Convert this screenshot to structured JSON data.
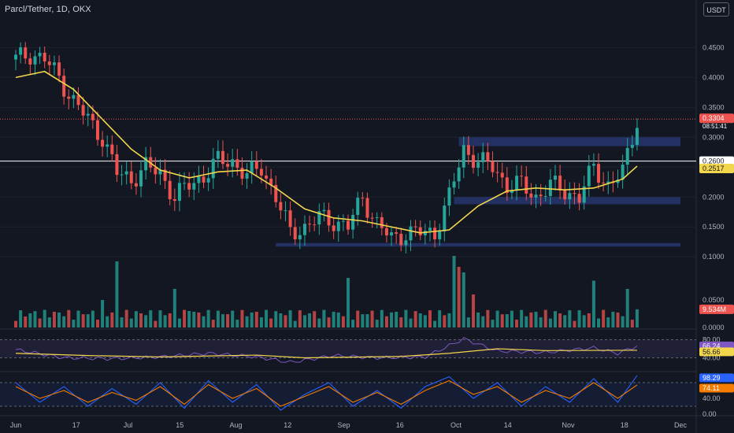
{
  "header": {
    "pair": "Parcl/Tether",
    "timeframe": "1D",
    "exchange": "OKX"
  },
  "currency_button": "USDT",
  "price_label": {
    "value": "0.3304",
    "countdown": "08:51:41"
  },
  "level_label": "0.2600",
  "ma_label": "0.2517",
  "volume_label": "9.534M",
  "rsi_labels": {
    "rsi": "66.24",
    "ma": "56.66"
  },
  "stoch_labels": {
    "k": "98.29",
    "d": "74.11"
  },
  "colors": {
    "background": "#131722",
    "up": "#26a69a",
    "down": "#ef5350",
    "ma": "#f2d64b",
    "zone": "#2a3b78",
    "rsi_line": "#7e57c2",
    "stoch_k": "#2962ff",
    "stoch_d": "#f57c00",
    "text": "#d1d4dc",
    "axis_text": "#b2b5be"
  },
  "chart_data": {
    "type": "candlestick",
    "x_ticks": [
      "Jun",
      "17",
      "Jul",
      "15",
      "Aug",
      "12",
      "Sep",
      "16",
      "Oct",
      "14",
      "Nov",
      "18",
      "Dec"
    ],
    "price_axis": {
      "ticks": [
        "0.4500",
        "0.4000",
        "0.3500",
        "0.3000",
        "0.2500",
        "0.2000",
        "0.1500",
        "0.1000"
      ],
      "range": [
        0.095,
        0.49
      ]
    },
    "price_close_samples": [
      {
        "t": 0,
        "v": 0.43
      },
      {
        "t": 3,
        "v": 0.44
      },
      {
        "t": 6,
        "v": 0.43
      },
      {
        "t": 9,
        "v": 0.4
      },
      {
        "t": 12,
        "v": 0.36
      },
      {
        "t": 15,
        "v": 0.33
      },
      {
        "t": 18,
        "v": 0.3
      },
      {
        "t": 21,
        "v": 0.24
      },
      {
        "t": 24,
        "v": 0.23
      },
      {
        "t": 27,
        "v": 0.25
      },
      {
        "t": 30,
        "v": 0.24
      },
      {
        "t": 33,
        "v": 0.2
      },
      {
        "t": 36,
        "v": 0.22
      },
      {
        "t": 39,
        "v": 0.235
      },
      {
        "t": 42,
        "v": 0.26
      },
      {
        "t": 45,
        "v": 0.26
      },
      {
        "t": 48,
        "v": 0.235
      },
      {
        "t": 51,
        "v": 0.25
      },
      {
        "t": 54,
        "v": 0.2
      },
      {
        "t": 57,
        "v": 0.14
      },
      {
        "t": 60,
        "v": 0.15
      },
      {
        "t": 63,
        "v": 0.165
      },
      {
        "t": 66,
        "v": 0.16
      },
      {
        "t": 69,
        "v": 0.15
      },
      {
        "t": 72,
        "v": 0.2
      },
      {
        "t": 75,
        "v": 0.155
      },
      {
        "t": 78,
        "v": 0.13
      },
      {
        "t": 81,
        "v": 0.14
      },
      {
        "t": 84,
        "v": 0.14
      },
      {
        "t": 87,
        "v": 0.14
      },
      {
        "t": 90,
        "v": 0.2
      },
      {
        "t": 93,
        "v": 0.28
      },
      {
        "t": 96,
        "v": 0.26
      },
      {
        "t": 99,
        "v": 0.25
      },
      {
        "t": 102,
        "v": 0.22
      },
      {
        "t": 105,
        "v": 0.22
      },
      {
        "t": 108,
        "v": 0.2
      },
      {
        "t": 111,
        "v": 0.22
      },
      {
        "t": 114,
        "v": 0.21
      },
      {
        "t": 117,
        "v": 0.2
      },
      {
        "t": 120,
        "v": 0.25
      },
      {
        "t": 123,
        "v": 0.22
      },
      {
        "t": 126,
        "v": 0.24
      },
      {
        "t": 129,
        "v": 0.3304
      }
    ],
    "ma_samples": [
      {
        "t": 0,
        "v": 0.4
      },
      {
        "t": 6,
        "v": 0.41
      },
      {
        "t": 12,
        "v": 0.38
      },
      {
        "t": 18,
        "v": 0.33
      },
      {
        "t": 24,
        "v": 0.28
      },
      {
        "t": 30,
        "v": 0.245
      },
      {
        "t": 36,
        "v": 0.232
      },
      {
        "t": 42,
        "v": 0.242
      },
      {
        "t": 48,
        "v": 0.245
      },
      {
        "t": 54,
        "v": 0.215
      },
      {
        "t": 60,
        "v": 0.18
      },
      {
        "t": 66,
        "v": 0.165
      },
      {
        "t": 72,
        "v": 0.16
      },
      {
        "t": 78,
        "v": 0.15
      },
      {
        "t": 84,
        "v": 0.14
      },
      {
        "t": 90,
        "v": 0.145
      },
      {
        "t": 96,
        "v": 0.185
      },
      {
        "t": 102,
        "v": 0.21
      },
      {
        "t": 108,
        "v": 0.215
      },
      {
        "t": 114,
        "v": 0.212
      },
      {
        "t": 120,
        "v": 0.215
      },
      {
        "t": 126,
        "v": 0.23
      },
      {
        "t": 129,
        "v": 0.2517
      }
    ],
    "zones": [
      {
        "t_start": 92,
        "t_end": 138,
        "v_low": 0.285,
        "v_high": 0.3
      },
      {
        "t_start": 91,
        "t_end": 138,
        "v_low": 0.188,
        "v_high": 0.2
      },
      {
        "t_start": 54,
        "t_end": 138,
        "v_low": 0.117,
        "v_high": 0.123
      }
    ],
    "horizontal_level": 0.26,
    "volume_axis": {
      "ticks": [
        "0.0500",
        "0.0000"
      ],
      "range": [
        0,
        0.13
      ]
    },
    "volume_peaks": [
      {
        "t": 2,
        "v": 0.02
      },
      {
        "t": 18,
        "v": 0.05
      },
      {
        "t": 21,
        "v": 0.12
      },
      {
        "t": 33,
        "v": 0.07
      },
      {
        "t": 36,
        "v": 0.03
      },
      {
        "t": 69,
        "v": 0.09
      },
      {
        "t": 91,
        "v": 0.13
      },
      {
        "t": 92,
        "v": 0.11
      },
      {
        "t": 93,
        "v": 0.1
      },
      {
        "t": 95,
        "v": 0.06
      },
      {
        "t": 120,
        "v": 0.085
      },
      {
        "t": 127,
        "v": 0.07
      },
      {
        "t": 129,
        "v": 0.033
      }
    ],
    "rsi_axis": {
      "ticks": [
        "80.00",
        "40.00"
      ],
      "range": [
        20,
        100
      ]
    },
    "rsi_samples": [
      {
        "t": 0,
        "v": 58
      },
      {
        "t": 10,
        "v": 40
      },
      {
        "t": 20,
        "v": 38
      },
      {
        "t": 30,
        "v": 42
      },
      {
        "t": 40,
        "v": 50
      },
      {
        "t": 50,
        "v": 42
      },
      {
        "t": 57,
        "v": 30
      },
      {
        "t": 66,
        "v": 45
      },
      {
        "t": 75,
        "v": 40
      },
      {
        "t": 85,
        "v": 42
      },
      {
        "t": 93,
        "v": 82
      },
      {
        "t": 100,
        "v": 55
      },
      {
        "t": 110,
        "v": 52
      },
      {
        "t": 120,
        "v": 62
      },
      {
        "t": 125,
        "v": 50
      },
      {
        "t": 129,
        "v": 66.24
      }
    ],
    "rsi_ma_samples": [
      {
        "t": 0,
        "v": 50
      },
      {
        "t": 15,
        "v": 45
      },
      {
        "t": 30,
        "v": 42
      },
      {
        "t": 50,
        "v": 46
      },
      {
        "t": 60,
        "v": 40
      },
      {
        "t": 80,
        "v": 43
      },
      {
        "t": 90,
        "v": 50
      },
      {
        "t": 100,
        "v": 60
      },
      {
        "t": 110,
        "v": 56
      },
      {
        "t": 129,
        "v": 56.66
      }
    ],
    "stoch_axis": {
      "ticks": [
        "40.00",
        "0.00"
      ],
      "range": [
        0,
        100
      ]
    },
    "stoch_k_samples": [
      {
        "t": 0,
        "v": 80
      },
      {
        "t": 5,
        "v": 30
      },
      {
        "t": 10,
        "v": 70
      },
      {
        "t": 15,
        "v": 20
      },
      {
        "t": 20,
        "v": 65
      },
      {
        "t": 25,
        "v": 25
      },
      {
        "t": 30,
        "v": 80
      },
      {
        "t": 35,
        "v": 15
      },
      {
        "t": 40,
        "v": 85
      },
      {
        "t": 45,
        "v": 30
      },
      {
        "t": 50,
        "v": 75
      },
      {
        "t": 55,
        "v": 10
      },
      {
        "t": 60,
        "v": 50
      },
      {
        "t": 65,
        "v": 80
      },
      {
        "t": 70,
        "v": 20
      },
      {
        "t": 75,
        "v": 60
      },
      {
        "t": 80,
        "v": 15
      },
      {
        "t": 85,
        "v": 70
      },
      {
        "t": 90,
        "v": 95
      },
      {
        "t": 95,
        "v": 40
      },
      {
        "t": 100,
        "v": 80
      },
      {
        "t": 105,
        "v": 20
      },
      {
        "t": 110,
        "v": 70
      },
      {
        "t": 115,
        "v": 30
      },
      {
        "t": 120,
        "v": 90
      },
      {
        "t": 125,
        "v": 30
      },
      {
        "t": 129,
        "v": 98.29
      }
    ],
    "stoch_d_samples": [
      {
        "t": 0,
        "v": 70
      },
      {
        "t": 5,
        "v": 40
      },
      {
        "t": 10,
        "v": 60
      },
      {
        "t": 15,
        "v": 30
      },
      {
        "t": 20,
        "v": 55
      },
      {
        "t": 25,
        "v": 35
      },
      {
        "t": 30,
        "v": 70
      },
      {
        "t": 35,
        "v": 25
      },
      {
        "t": 40,
        "v": 75
      },
      {
        "t": 45,
        "v": 40
      },
      {
        "t": 50,
        "v": 65
      },
      {
        "t": 55,
        "v": 20
      },
      {
        "t": 60,
        "v": 45
      },
      {
        "t": 65,
        "v": 70
      },
      {
        "t": 70,
        "v": 30
      },
      {
        "t": 75,
        "v": 55
      },
      {
        "t": 80,
        "v": 25
      },
      {
        "t": 85,
        "v": 60
      },
      {
        "t": 90,
        "v": 85
      },
      {
        "t": 95,
        "v": 50
      },
      {
        "t": 100,
        "v": 70
      },
      {
        "t": 105,
        "v": 30
      },
      {
        "t": 110,
        "v": 60
      },
      {
        "t": 115,
        "v": 40
      },
      {
        "t": 120,
        "v": 80
      },
      {
        "t": 125,
        "v": 40
      },
      {
        "t": 129,
        "v": 74.11
      }
    ]
  }
}
